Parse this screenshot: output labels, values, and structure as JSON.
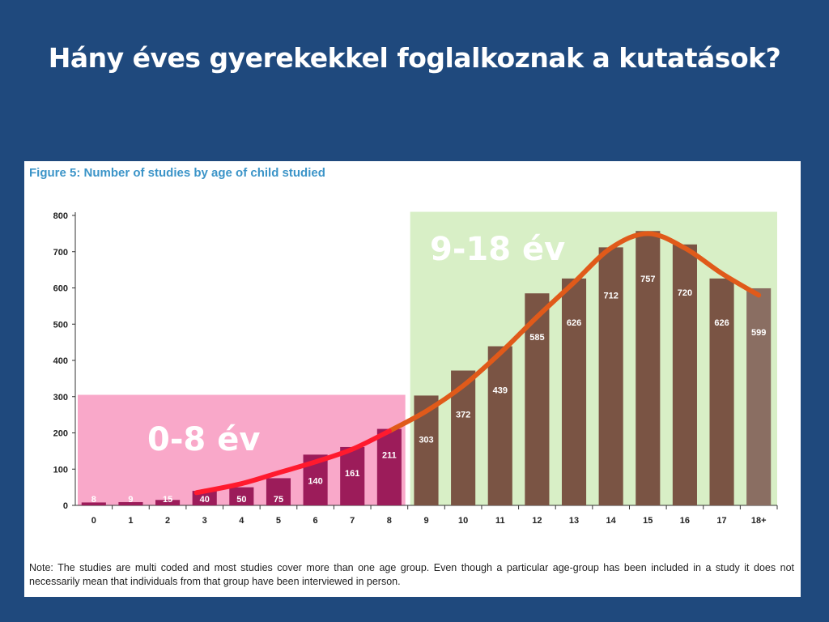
{
  "slide": {
    "title": "Hány éves gyerekekkel foglalkoznak a kutatások?"
  },
  "figure": {
    "title": "Figure 5: Number of studies by age of child studied",
    "note": "Note: The studies are multi coded and most studies cover more than one age group. Even though a particular age-group has been included in a study it does not necessarily mean that individuals from that group have been interviewed in person."
  },
  "annotations": {
    "young_label": "0-8 év",
    "old_label": "9-18 év"
  },
  "colors": {
    "background": "#1f497d",
    "young_region": "#f9a8c9",
    "old_region": "#d8efc6",
    "young_bar": "#9c1c5a",
    "old_bar": "#7a5444",
    "last_bar": "#8a6e62",
    "trend_young": "#ff1a2e",
    "trend_old": "#e05a1a",
    "figure_title": "#3b94c8"
  },
  "chart_data": {
    "type": "bar",
    "title": "Figure 5: Number of studies by age of child studied",
    "categories": [
      "0",
      "1",
      "2",
      "3",
      "4",
      "5",
      "6",
      "7",
      "8",
      "9",
      "10",
      "11",
      "12",
      "13",
      "14",
      "15",
      "16",
      "17",
      "18+"
    ],
    "values": [
      8,
      9,
      15,
      40,
      50,
      75,
      140,
      161,
      211,
      303,
      372,
      439,
      585,
      626,
      712,
      757,
      720,
      626,
      599
    ],
    "value_labels": [
      "8",
      "9",
      "15",
      "40",
      "50",
      "75",
      "140",
      "161",
      "211",
      "303",
      "372",
      "439",
      "585",
      "626",
      "712",
      "757",
      "720",
      "626",
      "599"
    ],
    "ylim": [
      0,
      800
    ],
    "yticks": [
      "0",
      "100",
      "200",
      "300",
      "400",
      "500",
      "600",
      "700",
      "800"
    ],
    "groups": [
      {
        "label": "0-8 év",
        "from": "0",
        "to": "8",
        "region_height": 305
      },
      {
        "label": "9-18 év",
        "from": "9",
        "to": "18+",
        "region_height": 810
      }
    ],
    "trend_line": {
      "categories": [
        "3",
        "4",
        "5",
        "6",
        "7",
        "8",
        "9",
        "10",
        "11",
        "12",
        "13",
        "14",
        "15",
        "16",
        "17",
        "18+"
      ],
      "values": [
        35,
        60,
        90,
        120,
        155,
        205,
        260,
        330,
        420,
        520,
        615,
        710,
        750,
        710,
        640,
        580
      ]
    }
  }
}
